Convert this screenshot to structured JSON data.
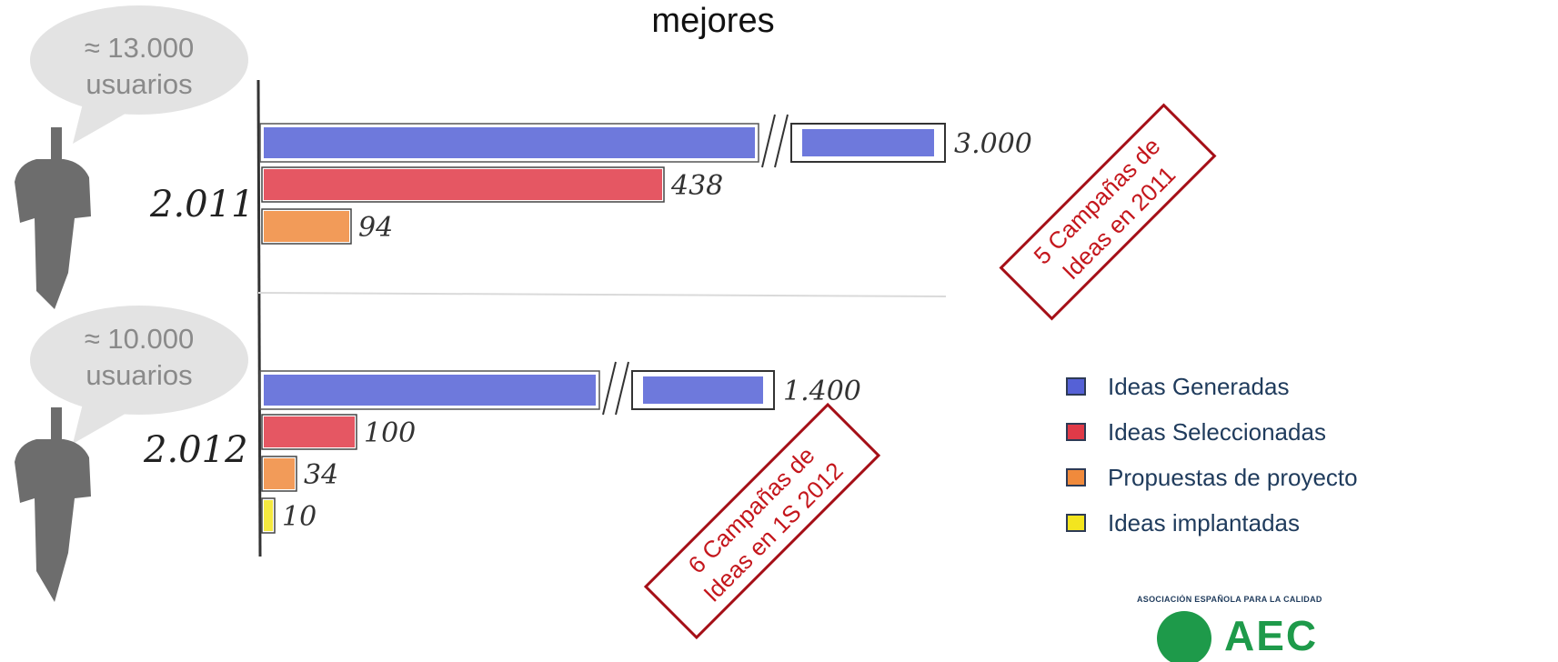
{
  "title": "mejores",
  "bubbles": [
    {
      "line1": "≈ 13.000",
      "line2": "usuarios"
    },
    {
      "line1": "≈ 10.000",
      "line2": "usuarios"
    }
  ],
  "stamps": {
    "y2011": {
      "line1": "5 Campañas de",
      "line2": "Ideas en 2011"
    },
    "y2012": {
      "line1": "6 Campañas de",
      "line2": "Ideas en 1S 2012"
    }
  },
  "legend": [
    {
      "label": "Ideas Generadas",
      "color": "#5561d6"
    },
    {
      "label": "Ideas Seleccionadas",
      "color": "#e03a48"
    },
    {
      "label": "Propuestas de proyecto",
      "color": "#f08a3c"
    },
    {
      "label": "Ideas implantadas",
      "color": "#f3e51f"
    }
  ],
  "logo": {
    "subtitle": "ASOCIACIÓN ESPAÑOLA PARA LA CALIDAD",
    "name": "AEC"
  },
  "chart_data": {
    "type": "bar",
    "orientation": "horizontal",
    "axis_break": true,
    "groups": [
      {
        "label": "2.011",
        "values": [
          3000,
          438,
          94
        ],
        "value_labels": [
          "3.000",
          "438",
          "94"
        ]
      },
      {
        "label": "2.012",
        "values": [
          1400,
          100,
          34,
          10
        ],
        "value_labels": [
          "1.400",
          "100",
          "34",
          "10"
        ]
      }
    ],
    "series": [
      {
        "name": "Ideas Generadas"
      },
      {
        "name": "Ideas Seleccionadas"
      },
      {
        "name": "Propuestas de proyecto"
      },
      {
        "name": "Ideas implantadas"
      }
    ]
  }
}
